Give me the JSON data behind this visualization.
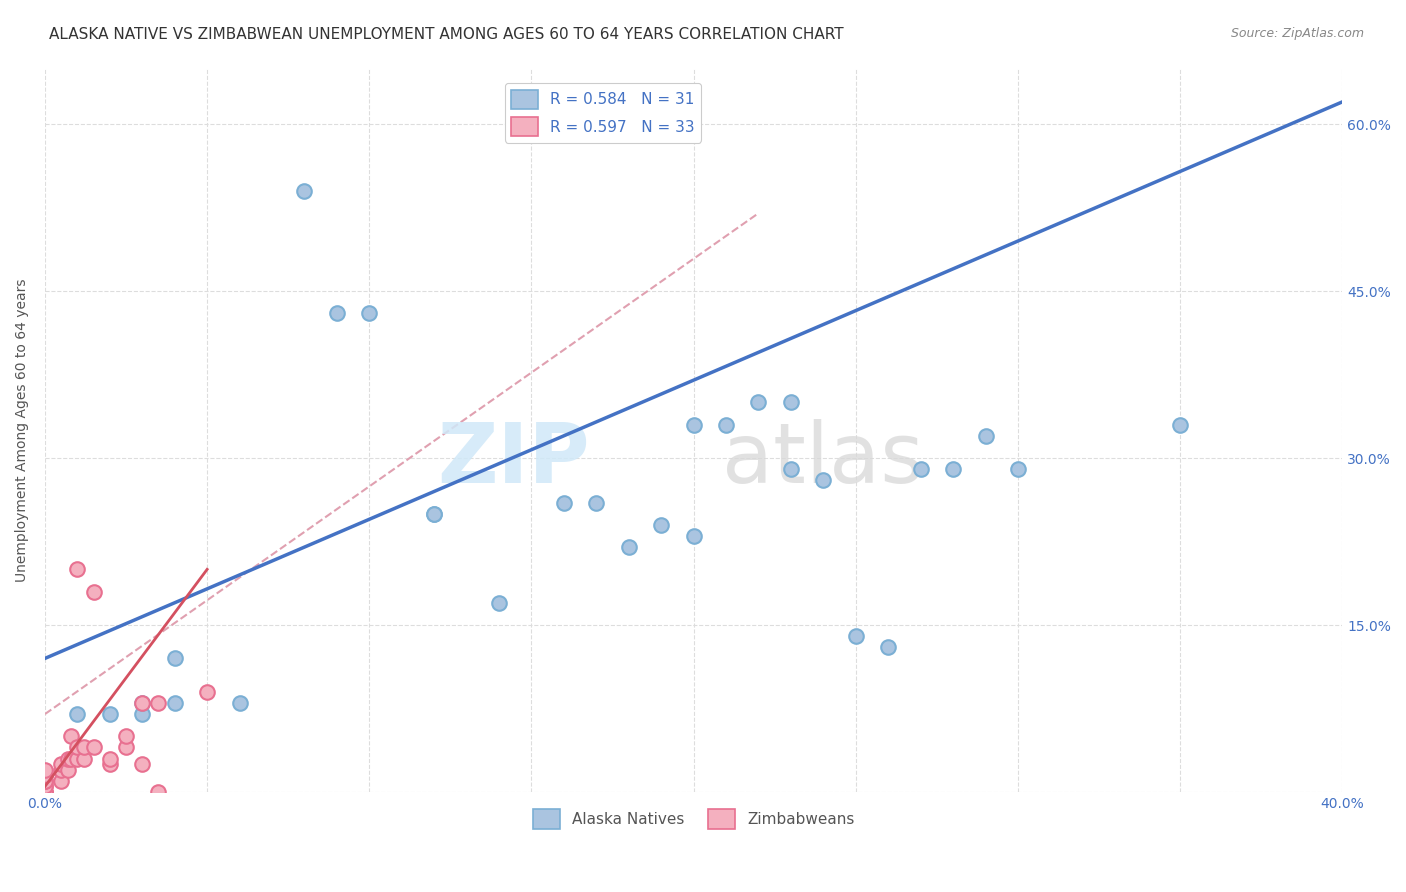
{
  "title": "ALASKA NATIVE VS ZIMBABWEAN UNEMPLOYMENT AMONG AGES 60 TO 64 YEARS CORRELATION CHART",
  "source": "Source: ZipAtlas.com",
  "ylabel": "Unemployment Among Ages 60 to 64 years",
  "xlim": [
    0.0,
    0.4
  ],
  "ylim": [
    0.0,
    0.65
  ],
  "xticks": [
    0.0,
    0.05,
    0.1,
    0.15,
    0.2,
    0.25,
    0.3,
    0.35,
    0.4
  ],
  "yticks": [
    0.0,
    0.15,
    0.3,
    0.45,
    0.6
  ],
  "yticklabels_right": [
    "",
    "15.0%",
    "30.0%",
    "45.0%",
    "60.0%"
  ],
  "legend_r_alaska": "R = 0.584",
  "legend_n_alaska": "N = 31",
  "legend_r_zimb": "R = 0.597",
  "legend_n_zimb": "N = 33",
  "alaska_color": "#aac4e0",
  "alaska_edge_color": "#7bafd4",
  "zimb_color": "#f4b0bf",
  "zimb_edge_color": "#e87090",
  "alaska_line_color": "#4472c4",
  "zimb_line_color": "#d45060",
  "dash_line_color": "#e0a0b0",
  "watermark_zip_color": "#d0e8f8",
  "watermark_atlas_color": "#d8d8d8",
  "background_color": "#ffffff",
  "grid_color": "#dddddd",
  "alaska_scatter_x": [
    0.04,
    0.08,
    0.09,
    0.1,
    0.12,
    0.12,
    0.14,
    0.16,
    0.17,
    0.18,
    0.19,
    0.2,
    0.2,
    0.21,
    0.22,
    0.23,
    0.23,
    0.24,
    0.25,
    0.26,
    0.27,
    0.28,
    0.29,
    0.3,
    0.35,
    0.01,
    0.02,
    0.03,
    0.03,
    0.04,
    0.06
  ],
  "alaska_scatter_y": [
    0.12,
    0.54,
    0.43,
    0.43,
    0.25,
    0.25,
    0.17,
    0.26,
    0.26,
    0.22,
    0.24,
    0.23,
    0.33,
    0.33,
    0.35,
    0.35,
    0.29,
    0.28,
    0.14,
    0.13,
    0.29,
    0.29,
    0.32,
    0.29,
    0.33,
    0.07,
    0.07,
    0.07,
    0.08,
    0.08,
    0.08
  ],
  "zimb_scatter_x": [
    0.0,
    0.0,
    0.0,
    0.0,
    0.0,
    0.0,
    0.0,
    0.0,
    0.0,
    0.0,
    0.005,
    0.005,
    0.005,
    0.007,
    0.007,
    0.008,
    0.008,
    0.01,
    0.01,
    0.01,
    0.012,
    0.012,
    0.015,
    0.015,
    0.02,
    0.02,
    0.025,
    0.025,
    0.03,
    0.03,
    0.035,
    0.035,
    0.05
  ],
  "zimb_scatter_y": [
    0.0,
    0.0,
    0.0,
    0.005,
    0.005,
    0.01,
    0.01,
    0.015,
    0.015,
    0.02,
    0.01,
    0.02,
    0.025,
    0.02,
    0.03,
    0.03,
    0.05,
    0.03,
    0.04,
    0.2,
    0.03,
    0.04,
    0.04,
    0.18,
    0.025,
    0.03,
    0.04,
    0.05,
    0.025,
    0.08,
    0.0,
    0.08,
    0.09
  ],
  "alaska_trend_x": [
    0.0,
    0.4
  ],
  "alaska_trend_y": [
    0.12,
    0.62
  ],
  "zimb_trend_x": [
    0.0,
    0.05
  ],
  "zimb_trend_y": [
    0.005,
    0.2
  ],
  "dash_line_x": [
    0.0,
    0.22
  ],
  "dash_line_y": [
    0.07,
    0.52
  ],
  "marker_size": 110,
  "title_fontsize": 11,
  "axis_label_fontsize": 10,
  "tick_fontsize": 10,
  "legend_fontsize": 11
}
